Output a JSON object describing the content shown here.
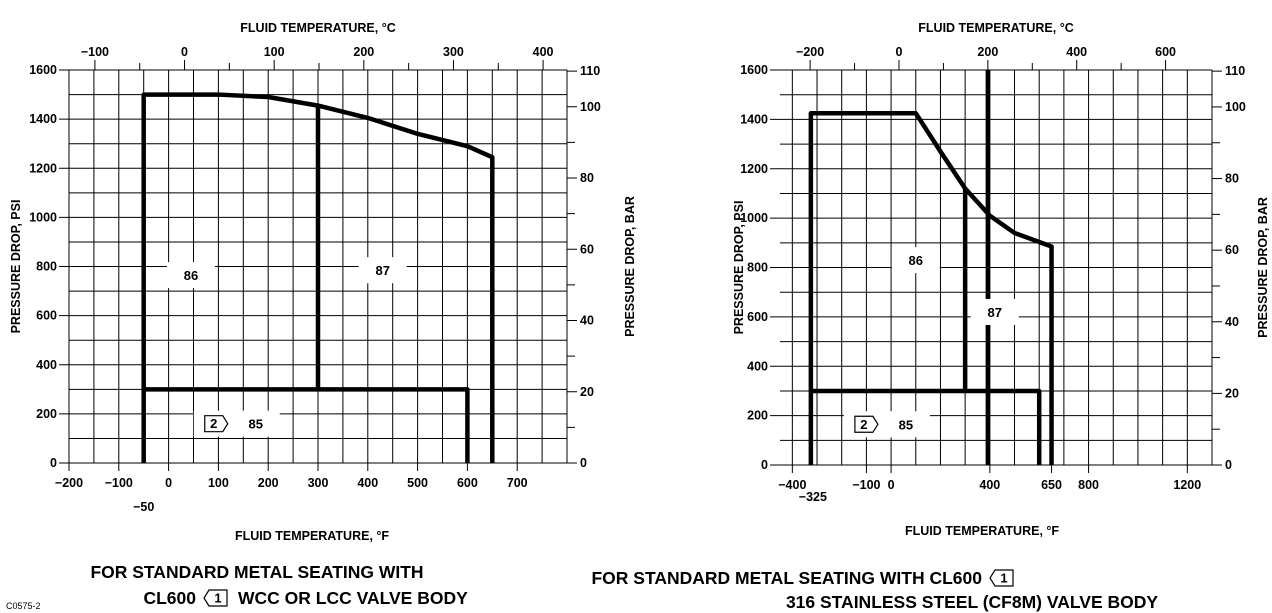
{
  "figure_code": "C0575-2",
  "chart_data": [
    {
      "type": "line",
      "title": "",
      "caption_line1": "FOR STANDARD METAL SEATING WITH",
      "caption_line2_prefix": "CL600",
      "caption_line2_suffix": "WCC OR LCC VALVE BODY",
      "caption_note_marker": "1",
      "xlabel": "FLUID TEMPERATURE, °F",
      "x2label": "FLUID TEMPERATURE, °C",
      "ylabel": "PRESSURE DROP, PSI",
      "y2label": "PRESSURE DROP, BAR",
      "xlim": [
        -200,
        800
      ],
      "ylim": [
        0,
        1600
      ],
      "x_ticks": [
        -200,
        -100,
        0,
        100,
        200,
        300,
        400,
        500,
        600,
        700
      ],
      "x_tick_labels": [
        "−200",
        "−100",
        "0",
        "100",
        "200",
        "300",
        "400",
        "500",
        "600",
        "700"
      ],
      "extra_x_tick": -50,
      "extra_x_tick_label": "−50",
      "y_ticks": [
        0,
        200,
        400,
        600,
        800,
        1000,
        1200,
        1400,
        1600
      ],
      "y_tick_labels": [
        "0",
        "200",
        "400",
        "600",
        "800",
        "1000",
        "1200",
        "1400",
        "1600"
      ],
      "c_ticks": [
        -100,
        0,
        100,
        200,
        300,
        400
      ],
      "c_tick_labels": [
        "−100",
        "0",
        "100",
        "200",
        "300",
        "400"
      ],
      "bar_ticks": [
        0,
        20,
        40,
        60,
        80,
        100,
        110
      ],
      "bar_tick_labels": [
        "0",
        "20",
        "40",
        "60",
        "80",
        "100",
        "110"
      ],
      "x_grid_step": 50,
      "y_grid_step": 100,
      "series": [
        {
          "x": [
            -50,
            -50,
            100,
            200,
            300,
            400,
            500,
            600,
            650,
            650
          ],
          "y": [
            0,
            1500,
            1500,
            1490,
            1455,
            1405,
            1340,
            1290,
            1245,
            0
          ]
        },
        {
          "x": [
            -50,
            600,
            600
          ],
          "y": [
            300,
            300,
            0
          ]
        },
        {
          "x": [
            300,
            300
          ],
          "y": [
            300,
            1455
          ]
        }
      ],
      "regions": [
        {
          "label": "86",
          "x": 45,
          "y": 765
        },
        {
          "label": "87",
          "x": 430,
          "y": 785
        },
        {
          "label": "85",
          "x": 175,
          "y": 160,
          "note": "2"
        }
      ]
    },
    {
      "type": "line",
      "title": "",
      "caption_line1_prefix": "FOR STANDARD METAL SEATING WITH CL600",
      "caption_line2": "316 STAINLESS STEEL (CF8M) VALVE BODY",
      "caption_note_marker": "1",
      "xlabel": "FLUID TEMPERATURE, °F",
      "x2label": "FLUID TEMPERATURE, °C",
      "ylabel": "PRESSURE DROP, PSI",
      "y2label": "PRESSURE DROP, BAR",
      "xlim": [
        -450,
        1300
      ],
      "ylim": [
        0,
        1600
      ],
      "x_ticks": [
        -400,
        -100,
        0,
        400,
        650,
        800,
        1200
      ],
      "x_tick_labels": [
        "−400",
        "−100",
        "0",
        "400",
        "650",
        "800",
        "1200"
      ],
      "extra_x_tick": -325,
      "extra_x_tick_label": "−325",
      "y_ticks": [
        0,
        200,
        400,
        600,
        800,
        1000,
        1200,
        1400,
        1600
      ],
      "y_tick_labels": [
        "0",
        "200",
        "400",
        "600",
        "800",
        "1000",
        "1200",
        "1400",
        "1600"
      ],
      "c_ticks": [
        -200,
        0,
        200,
        400,
        600
      ],
      "c_tick_labels": [
        "−200",
        "0",
        "200",
        "400",
        "600"
      ],
      "bar_ticks": [
        0,
        20,
        40,
        60,
        80,
        100,
        110
      ],
      "bar_tick_labels": [
        "0",
        "20",
        "40",
        "60",
        "80",
        "100",
        "110"
      ],
      "x_grid_step": 100,
      "y_grid_step": 100,
      "series": [
        {
          "x": [
            -325,
            -325,
            100,
            200,
            300,
            400,
            500,
            650,
            650
          ],
          "y": [
            0,
            1425,
            1425,
            1270,
            1120,
            1010,
            940,
            885,
            0
          ]
        },
        {
          "x": [
            -325,
            600,
            600
          ],
          "y": [
            300,
            300,
            0
          ]
        },
        {
          "x": [
            300,
            300
          ],
          "y": [
            300,
            1120
          ]
        },
        {
          "x": [
            392,
            392
          ],
          "y": [
            0,
            1600
          ],
          "style": "thin"
        }
      ],
      "regions": [
        {
          "label": "86",
          "x": 100,
          "y": 830
        },
        {
          "label": "87",
          "x": 420,
          "y": 620
        },
        {
          "label": "85",
          "x": 60,
          "y": 165,
          "note": "2"
        }
      ]
    }
  ]
}
